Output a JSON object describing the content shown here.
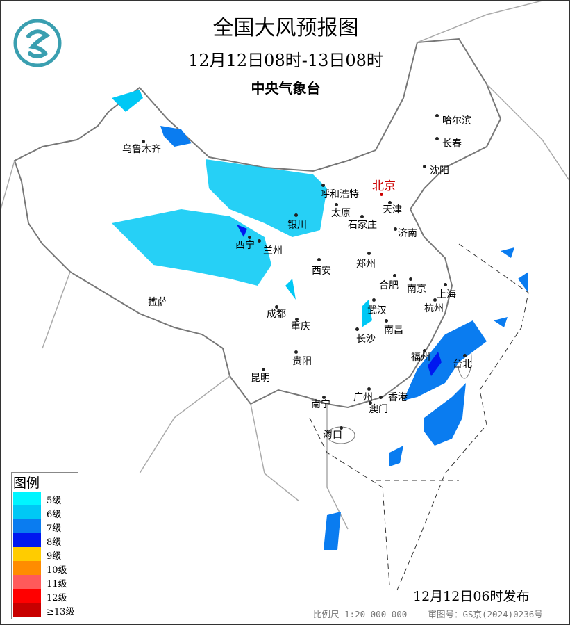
{
  "header": {
    "title": "全国大风预报图",
    "period": "12月12日08时-13日08时",
    "agency": "中央气象台"
  },
  "cities": {
    "urumqi": "乌鲁木齐",
    "harbin": "哈尔滨",
    "changchun": "长春",
    "shenyang": "沈阳",
    "hohhot": "呼和浩特",
    "beijing": "北京",
    "tianjin": "天津",
    "taiyuan": "太原",
    "shijiazhuang": "石家庄",
    "yinchuan": "银川",
    "jinan": "济南",
    "xining": "西宁",
    "lanzhou": "兰州",
    "zhengzhou": "郑州",
    "xian": "西安",
    "hefei": "合肥",
    "nanjing": "南京",
    "shanghai": "上海",
    "lhasa": "拉萨",
    "hangzhou": "杭州",
    "chengdu": "成都",
    "wuhan": "武汉",
    "chongqing": "重庆",
    "nanchang": "南昌",
    "changsha": "长沙",
    "fuzhou": "福州",
    "taipei": "台北",
    "guiyang": "贵阳",
    "kunming": "昆明",
    "guangzhou": "广州",
    "hongkong": "香港",
    "macau": "澳门",
    "nanning": "南宁",
    "haikou": "海口"
  },
  "legend": {
    "title": "图例",
    "items": [
      {
        "label": "5级",
        "color": "#00f5ff"
      },
      {
        "label": "6级",
        "color": "#00c8f5"
      },
      {
        "label": "7级",
        "color": "#0a7cf0"
      },
      {
        "label": "8级",
        "color": "#0018f0"
      },
      {
        "label": "9级",
        "color": "#ffcc00"
      },
      {
        "label": "10级",
        "color": "#ff8c00"
      },
      {
        "label": "11级",
        "color": "#ff5a5a"
      },
      {
        "label": "12级",
        "color": "#ff0000"
      },
      {
        "label": "≥13级",
        "color": "#c80000"
      }
    ]
  },
  "issue_time": "12月12日06时发布",
  "footer": {
    "scale": "比例尺 1:20 000 000",
    "map_number": "审图号：GS京(2024)0236号"
  },
  "logo": {
    "color": "#3a9fb0"
  }
}
